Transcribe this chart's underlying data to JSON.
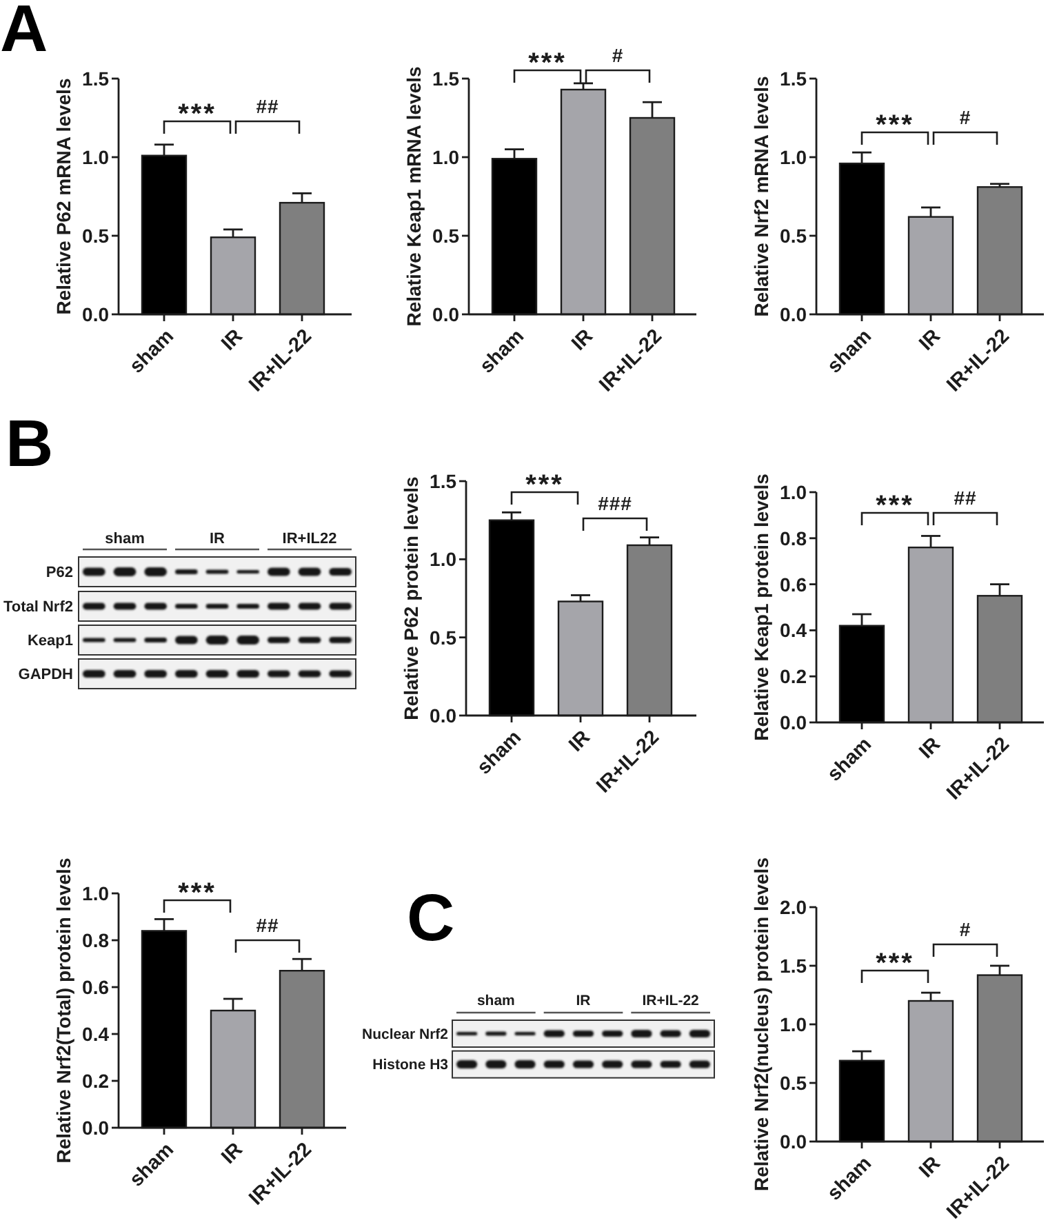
{
  "chart_data": [
    {
      "type": "bar",
      "title": "A",
      "ylabel": "Relative P62 mRNA levels",
      "categories": [
        "sham",
        "IR",
        "IR+IL-22"
      ],
      "values": [
        1.01,
        0.49,
        0.71
      ],
      "errors": [
        0.07,
        0.05,
        0.06
      ],
      "colors": [
        "#000000",
        "#a5a5aa",
        "#7f7f7f"
      ],
      "ylim": [
        0,
        1.5
      ],
      "yticks": [
        {
          "value": 0,
          "label": "0.0"
        },
        0.5,
        {
          "value": 1,
          "label": "1.0"
        },
        1.5
      ],
      "annotations": [
        "***",
        "##"
      ]
    },
    {
      "type": "bar",
      "ylabel": "Relative Keap1 mRNA levels",
      "categories": [
        "sham",
        "IR",
        "IR+IL-22"
      ],
      "values": [
        0.99,
        1.43,
        1.25
      ],
      "errors": [
        0.06,
        0.04,
        0.1
      ],
      "colors": [
        "#000000",
        "#a5a5aa",
        "#7f7f7f"
      ],
      "ylim": [
        0,
        1.5
      ],
      "yticks": [
        {
          "value": 0,
          "label": "0.0"
        },
        0.5,
        {
          "value": 1,
          "label": "1.0"
        },
        1.5
      ],
      "annotations": [
        "***",
        "#"
      ]
    },
    {
      "type": "bar",
      "ylabel": "Relative Nrf2 mRNA levels",
      "categories": [
        "sham",
        "IR",
        "IR+IL-22"
      ],
      "values": [
        0.96,
        0.62,
        0.81
      ],
      "errors": [
        0.07,
        0.06,
        0.02
      ],
      "colors": [
        "#000000",
        "#a5a5aa",
        "#7f7f7f"
      ],
      "ylim": [
        0,
        1.5
      ],
      "yticks": [
        {
          "value": 0,
          "label": "0.0"
        },
        0.5,
        {
          "value": 1,
          "label": "1.0"
        },
        1.5
      ],
      "annotations": [
        "***",
        "#"
      ]
    },
    {
      "type": "other",
      "title": "B",
      "categories": [
        "sham",
        "IR",
        "IR+IL22"
      ],
      "y_categories": [
        "P62",
        "Total Nrf2",
        "Keap1",
        "GAPDH"
      ]
    },
    {
      "type": "bar",
      "ylabel": "Relative P62 protein levels",
      "categories": [
        "sham",
        "IR",
        "IR+IL-22"
      ],
      "values": [
        1.25,
        0.73,
        1.09
      ],
      "errors": [
        0.05,
        0.04,
        0.05
      ],
      "colors": [
        "#000000",
        "#a5a5aa",
        "#7f7f7f"
      ],
      "ylim": [
        0,
        1.5
      ],
      "yticks": [
        {
          "value": 0,
          "label": "0.0"
        },
        0.5,
        {
          "value": 1,
          "label": "1.0"
        },
        1.5
      ],
      "annotations": [
        "***",
        "###"
      ]
    },
    {
      "type": "bar",
      "ylabel": "Relative Keap1 protein levels",
      "categories": [
        "sham",
        "IR",
        "IR+IL-22"
      ],
      "values": [
        0.42,
        0.76,
        0.55
      ],
      "errors": [
        0.05,
        0.05,
        0.05
      ],
      "colors": [
        "#000000",
        "#a5a5aa",
        "#7f7f7f"
      ],
      "ylim": [
        0,
        1
      ],
      "yticks": [
        {
          "value": 0,
          "label": "0.0"
        },
        0.2,
        0.4,
        0.6,
        0.8,
        {
          "value": 1,
          "label": "1.0"
        }
      ],
      "annotations": [
        "***",
        "##"
      ]
    },
    {
      "type": "bar",
      "ylabel": "Relative Nrf2(Total) protein levels",
      "categories": [
        "sham",
        "IR",
        "IR+IL-22"
      ],
      "values": [
        0.84,
        0.5,
        0.67
      ],
      "errors": [
        0.05,
        0.05,
        0.05
      ],
      "colors": [
        "#000000",
        "#a5a5aa",
        "#7f7f7f"
      ],
      "ylim": [
        0,
        1
      ],
      "yticks": [
        {
          "value": 0,
          "label": "0.0"
        },
        0.2,
        0.4,
        0.6,
        0.8,
        {
          "value": 1,
          "label": "1.0"
        }
      ],
      "annotations": [
        "***",
        "##"
      ]
    },
    {
      "type": "other",
      "title": "C",
      "categories": [
        "sham",
        "IR",
        "IR+IL-22"
      ],
      "y_categories": [
        "Nuclear Nrf2",
        "Histone H3"
      ]
    },
    {
      "type": "bar",
      "ylabel": "Relative Nrf2(nucleus) protein levels",
      "categories": [
        "sham",
        "IR",
        "IR+IL-22"
      ],
      "values": [
        0.69,
        1.2,
        1.42
      ],
      "errors": [
        0.08,
        0.07,
        0.08
      ],
      "colors": [
        "#000000",
        "#a5a5aa",
        "#7f7f7f"
      ],
      "ylim": [
        0,
        2
      ],
      "yticks": [
        {
          "value": 0,
          "label": "0.0"
        },
        0.5,
        {
          "value": 1,
          "label": "1.0"
        },
        1.5,
        {
          "value": 2,
          "label": "2.0"
        }
      ],
      "annotations": [
        "***",
        "#"
      ]
    }
  ]
}
